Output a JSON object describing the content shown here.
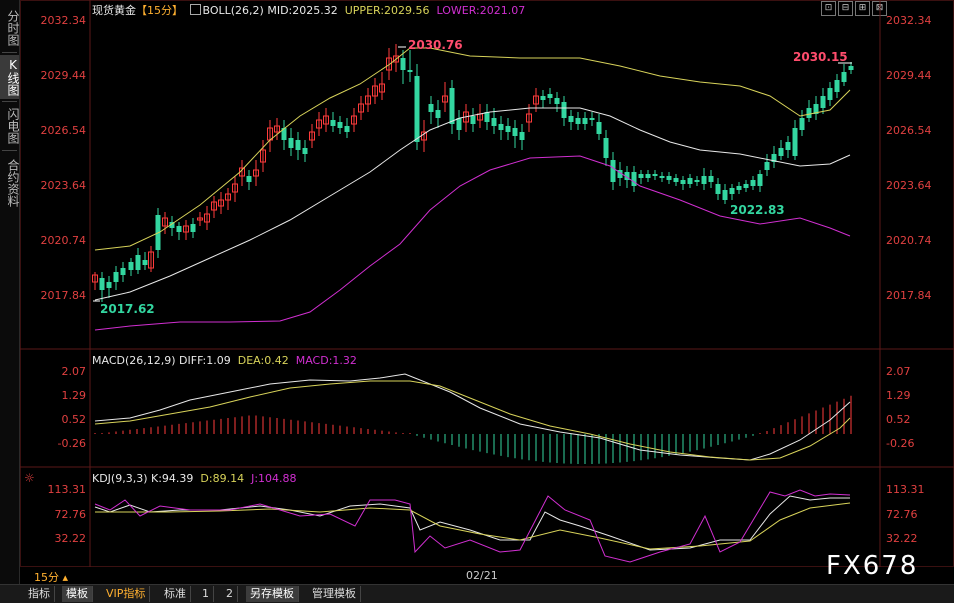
{
  "sidebar": [
    {
      "label": "分时图",
      "active": false
    },
    {
      "label": "K线图",
      "active": true
    },
    {
      "label": "闪电图",
      "active": false
    },
    {
      "label": "合约资料",
      "active": false
    }
  ],
  "main": {
    "symbol": "现货黄金",
    "period": "【15分】",
    "boll_label": "BOLL(26,2)",
    "mid_label": "MID:2025.32",
    "upper_label": "UPPER:2029.56",
    "lower_label": "LOWER:2021.07",
    "price_ticks": [
      "2032.34",
      "2029.44",
      "2026.54",
      "2023.64",
      "2020.74",
      "2017.84"
    ],
    "annotations": {
      "high": "2030.76",
      "last_high": "2030.15",
      "low_mid": "2022.83",
      "low_start": "2017.62"
    }
  },
  "macd": {
    "label": "MACD(26,12,9)",
    "diff_label": "DIFF:1.09",
    "dea_label": "DEA:0.42",
    "macd_label": "MACD:1.32",
    "ticks": [
      "2.07",
      "1.29",
      "0.52",
      "-0.26"
    ]
  },
  "kdj": {
    "label": "KDJ(9,3,3)",
    "k_label": "K:94.39",
    "d_label": "D:89.14",
    "j_label": "J:104.88",
    "ticks": [
      "113.31",
      "72.76",
      "32.22"
    ]
  },
  "xaxis": {
    "period_label": "15分",
    "date_label": "02/21"
  },
  "window_buttons": [
    "⊡",
    "⊟",
    "⊞",
    "⊠"
  ],
  "bottom_tabs": [
    {
      "label": "指标",
      "active": false
    },
    {
      "label": "模板",
      "active": true
    },
    {
      "label": "VIP指标",
      "active": false,
      "vip": true
    },
    {
      "label": "标准",
      "active": false
    },
    {
      "label": "1",
      "active": false
    },
    {
      "label": "2",
      "active": false
    },
    {
      "label": "另存模板",
      "active": true
    },
    {
      "label": "管理模板",
      "active": false
    }
  ],
  "watermark": "FX678",
  "colors": {
    "up": "#ff3b3b",
    "down": "#33d6a0",
    "mid": "#e8e8e8",
    "upper": "#d8d35a",
    "lower": "#d12fd1",
    "kdj_k": "#e8e8e8",
    "kdj_d": "#d8d35a",
    "kdj_j": "#d12fd1",
    "price_tick": "#e04040"
  }
}
